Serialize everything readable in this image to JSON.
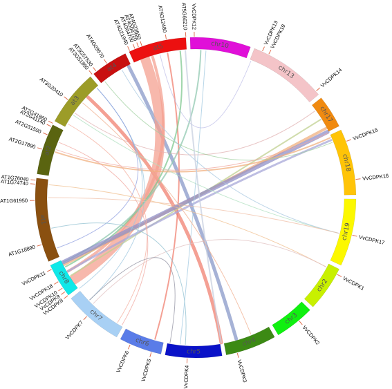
{
  "diagram": {
    "type": "circos",
    "segments": [
      {
        "name": "chr10",
        "color": "#e010d8",
        "start": 358.0,
        "end": 20.0
      },
      {
        "name": "chr13",
        "color": "#f4c4c8",
        "start": 21.5,
        "end": 50.0
      },
      {
        "name": "chr17",
        "color": "#f08a10",
        "start": 51.5,
        "end": 63.5
      },
      {
        "name": "chr18",
        "color": "#ffc408",
        "start": 65.0,
        "end": 89.0
      },
      {
        "name": "chr19",
        "color": "#fcf800",
        "start": 90.5,
        "end": 115.0
      },
      {
        "name": "chr2",
        "color": "#c8f000",
        "start": 116.5,
        "end": 133.0
      },
      {
        "name": "chr3",
        "color": "#10f010",
        "start": 134.5,
        "end": 149.0
      },
      {
        "name": "chr4",
        "color": "#3c8a14",
        "start": 150.5,
        "end": 169.0
      },
      {
        "name": "chr5",
        "color": "#0a12c8",
        "start": 170.5,
        "end": 191.0
      },
      {
        "name": "chr6",
        "color": "#5a7ce8",
        "start": 192.5,
        "end": 208.0
      },
      {
        "name": "chr7",
        "color": "#a8d0f4",
        "start": 209.5,
        "end": 231.0
      },
      {
        "name": "chr8",
        "color": "#10e8e8",
        "start": 232.5,
        "end": 245.0
      },
      {
        "name": "at1",
        "color": "#8a5010",
        "start": 246.5,
        "end": 277.0
      },
      {
        "name": "at2",
        "color": "#5a6410",
        "start": 278.5,
        "end": 297.0
      },
      {
        "name": "at3",
        "color": "#9c9c28",
        "start": 298.5,
        "end": 319.0
      },
      {
        "name": "at4",
        "color": "#c81010",
        "start": 320.5,
        "end": 334.0
      },
      {
        "name": "at5",
        "color": "#ec1010",
        "start": 335.5,
        "end": 356.5
      }
    ],
    "genes": [
      {
        "name": "AT5G66210",
        "angle": 356.5
      },
      {
        "name": "VvCDPK12",
        "angle": 359.5
      },
      {
        "name": "AT5G12480",
        "angle": 349.5
      },
      {
        "name": "AT4G23650",
        "angle": 340.5
      },
      {
        "name": "AT4G04720",
        "angle": 339.2
      },
      {
        "name": "AT4G04700",
        "angle": 337.8
      },
      {
        "name": "AT4G21940",
        "angle": 335.8
      },
      {
        "name": "AT4G09570",
        "angle": 326.5
      },
      {
        "name": "AT3G57530",
        "angle": 321.8
      },
      {
        "name": "AT3G51850",
        "angle": 320.0
      },
      {
        "name": "AT3G20410",
        "angle": 307.5
      },
      {
        "name": "AT2G41860",
        "angle": 297.5
      },
      {
        "name": "AT2G41140",
        "angle": 296.2
      },
      {
        "name": "AT2G31500",
        "angle": 293.0
      },
      {
        "name": "AT2G17890",
        "angle": 287.5
      },
      {
        "name": "AT1G76040",
        "angle": 276.2
      },
      {
        "name": "AT1G74740",
        "angle": 274.8
      },
      {
        "name": "AT1G61950",
        "angle": 269.0
      },
      {
        "name": "AT1G18890",
        "angle": 253.0
      },
      {
        "name": "VvCDPK13",
        "angle": 24.5
      },
      {
        "name": "VvCDPK19",
        "angle": 27.0
      },
      {
        "name": "VvCDPK14",
        "angle": 48.5
      },
      {
        "name": "VvCDPK15",
        "angle": 69.5
      },
      {
        "name": "VvCDPK16",
        "angle": 83.5
      },
      {
        "name": "VvCDPK17",
        "angle": 103.5
      },
      {
        "name": "VvCDPK1",
        "angle": 118.5
      },
      {
        "name": "VvCDPK2",
        "angle": 140.0
      },
      {
        "name": "VvCDPK3",
        "angle": 165.0
      },
      {
        "name": "VvCDPK4",
        "angle": 183.0
      },
      {
        "name": "VvCDPK5",
        "angle": 196.0
      },
      {
        "name": "VvCDPK6",
        "angle": 204.0
      },
      {
        "name": "VvCDPK7",
        "angle": 222.5
      },
      {
        "name": "VvCDPK8",
        "angle": 232.5
      },
      {
        "name": "VvCDPK9",
        "angle": 234.2
      },
      {
        "name": "VvCDPK10",
        "angle": 235.8
      },
      {
        "name": "VvCDPK18",
        "angle": 238.5
      },
      {
        "name": "VvCDPK11",
        "angle": 243.5
      }
    ],
    "links": [
      {
        "from": 313,
        "to": 170,
        "color": "#f08070",
        "width": 5
      },
      {
        "from": 349,
        "to": 196,
        "color": "#f08070",
        "width": 2
      },
      {
        "from": 333,
        "to": 164,
        "color": "#8898c8",
        "width": 5
      },
      {
        "from": 340,
        "to": 236,
        "color": "#f4a090",
        "width": 14
      },
      {
        "from": 343,
        "to": 240,
        "color": "#f4a090",
        "width": 4
      },
      {
        "from": 354,
        "to": 242,
        "color": "#80c890",
        "width": 2
      },
      {
        "from": 2,
        "to": 244,
        "color": "#90c8b0",
        "width": 2
      },
      {
        "from": 62,
        "to": 243,
        "color": "#f0b080",
        "width": 4
      },
      {
        "from": 58,
        "to": 238,
        "color": "#c0d090",
        "width": 2
      },
      {
        "from": 63.5,
        "to": 244,
        "color": "#9090c8",
        "width": 6
      },
      {
        "from": 67,
        "to": 240,
        "color": "#a8a8d8",
        "width": 3
      },
      {
        "from": 66,
        "to": 288,
        "color": "#f0b080",
        "width": 2
      },
      {
        "from": 54,
        "to": 305,
        "color": "#e0b0b0",
        "width": 1
      },
      {
        "from": 68,
        "to": 322,
        "color": "#a0d0a0",
        "width": 1
      },
      {
        "from": 104,
        "to": 304,
        "color": "#b0e0c0",
        "width": 1
      },
      {
        "from": 104,
        "to": 330,
        "color": "#a8c8e0",
        "width": 1
      },
      {
        "from": 104,
        "to": 270,
        "color": "#f0c0a8",
        "width": 1
      },
      {
        "from": 22,
        "to": 346,
        "color": "#c0c0e8",
        "width": 1
      },
      {
        "from": 4,
        "to": 186,
        "color": "#a0c8e0",
        "width": 1
      },
      {
        "from": 356,
        "to": 170,
        "color": "#c8d0e0",
        "width": 2
      },
      {
        "from": 226,
        "to": 318,
        "color": "#a0c8e0",
        "width": 1
      },
      {
        "from": 232,
        "to": 318,
        "color": "#a0c8e0",
        "width": 1
      },
      {
        "from": 300,
        "to": 212,
        "color": "#f4b0a0",
        "width": 1
      },
      {
        "from": 318,
        "to": 250,
        "color": "#90a0e0",
        "width": 1
      },
      {
        "from": 275,
        "to": 118,
        "color": "#f0c090",
        "width": 1
      },
      {
        "from": 118,
        "to": 224,
        "color": "#e0c0c0",
        "width": 1
      },
      {
        "from": 190,
        "to": 226,
        "color": "#9090a0",
        "width": 1
      },
      {
        "from": 289,
        "to": 64,
        "color": "#f0a8a0",
        "width": 1
      },
      {
        "from": 292,
        "to": 210,
        "color": "#f0a8a0",
        "width": 1
      },
      {
        "from": 258,
        "to": 184,
        "color": "#90c0d0",
        "width": 1
      },
      {
        "from": 310,
        "to": 158,
        "color": "#f0b090",
        "width": 1
      }
    ]
  }
}
